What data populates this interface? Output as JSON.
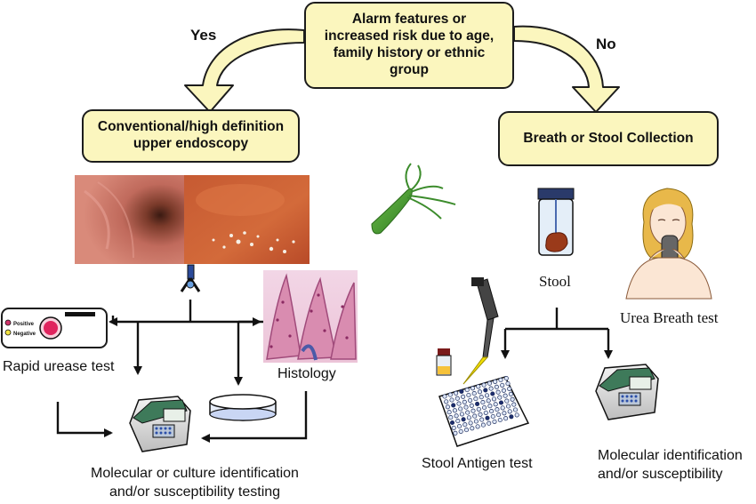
{
  "decision": {
    "question": "Alarm features or increased risk due to age, family history  or ethnic group",
    "yes_label": "Yes",
    "no_label": "No"
  },
  "left_branch": {
    "box_label": "Conventional/high definition upper endoscopy",
    "rapid_urease_label": "Rapid urease test",
    "rapid_urease_card": {
      "positive": "Positive",
      "negative": "Negative"
    },
    "histology_label": "Histology",
    "result_label": "Molecular or culture identification and/or susceptibility testing"
  },
  "right_branch": {
    "box_label": "Breath or Stool Collection",
    "stool_label": "Stool",
    "breath_label": "Urea Breath test",
    "antigen_label": "Stool Antigen test",
    "result_label": "Molecular identification and/or susceptibility"
  },
  "colors": {
    "box_fill": "#fbf6be",
    "arrow_fill": "#fbf6be",
    "outline": "#1c1c1c",
    "bacterium": "#3c8c2c",
    "tissue": "#c05a40"
  }
}
